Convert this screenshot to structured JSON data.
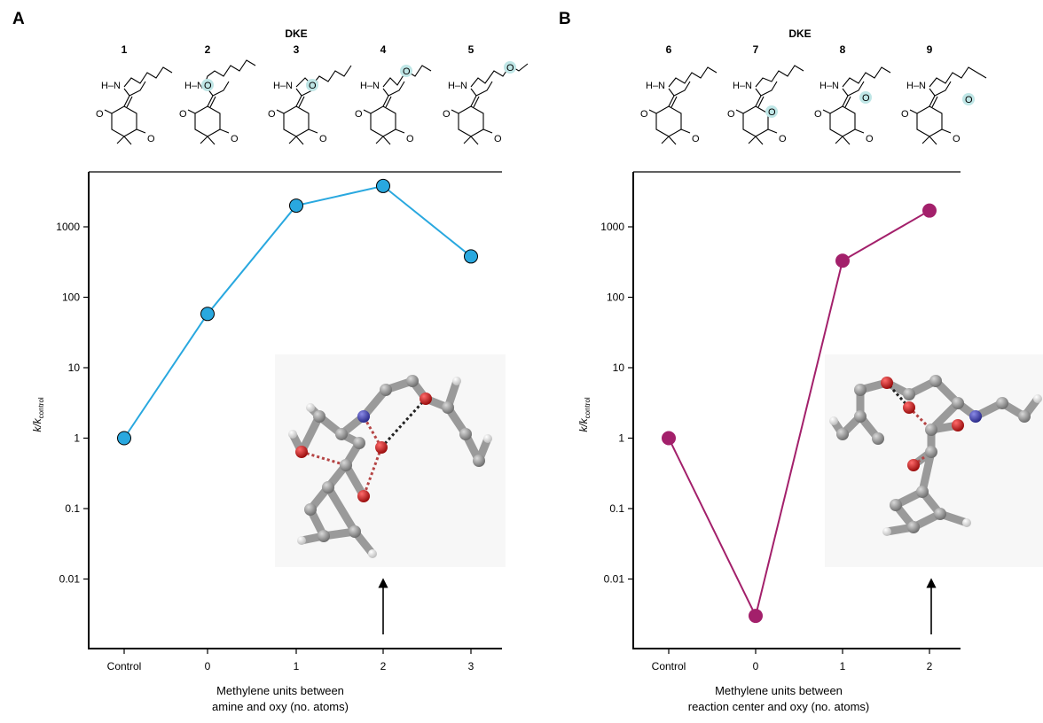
{
  "figure": {
    "panels": [
      {
        "letter": "A",
        "header": "DKE",
        "compound_labels": [
          "1",
          "2",
          "3",
          "4",
          "5"
        ],
        "xlabel_line1": "Methylene units between",
        "xlabel_line2": "amine and oxy (no. atoms)",
        "ylabel_main": "k/k",
        "ylabel_sub": "control",
        "series_color": "#29a8df"
      },
      {
        "letter": "B",
        "header": "DKE",
        "compound_labels": [
          "6",
          "7",
          "8",
          "9"
        ],
        "xlabel_line1": "Methylene units between",
        "xlabel_line2": "reaction center and oxy (no. atoms)",
        "ylabel_main": "k/k",
        "ylabel_sub": "control",
        "series_color": "#a3206b"
      }
    ],
    "structure_text": {
      "amine": "H–N",
      "oxygen": "O"
    }
  },
  "chart_data": [
    {
      "type": "line",
      "scale_y": "log",
      "categories": [
        "Control",
        "0",
        "1",
        "2",
        "3"
      ],
      "values": [
        1,
        58,
        2000,
        3800,
        380
      ],
      "ylim": [
        0.001,
        6000
      ],
      "yticks": [
        "1000",
        "100",
        "10",
        "1",
        "0.1",
        "0.01"
      ],
      "ytick_values": [
        1000,
        100,
        10,
        1,
        0.1,
        0.01
      ],
      "xlabel": "Methylene units between amine and oxy (no. atoms)",
      "ylabel": "k/kcontrol",
      "annotation": "arrow pointing at category 2"
    },
    {
      "type": "line",
      "scale_y": "log",
      "categories": [
        "Control",
        "0",
        "1",
        "2"
      ],
      "values": [
        1,
        0.003,
        330,
        1700
      ],
      "ylim": [
        0.001,
        6000
      ],
      "yticks": [
        "1000",
        "100",
        "10",
        "1",
        "0.1",
        "0.01"
      ],
      "ytick_values": [
        1000,
        100,
        10,
        1,
        0.1,
        0.01
      ],
      "xlabel": "Methylene units between reaction center and oxy (no. atoms)",
      "ylabel": "k/kcontrol",
      "annotation": "arrow pointing at category 2"
    }
  ]
}
